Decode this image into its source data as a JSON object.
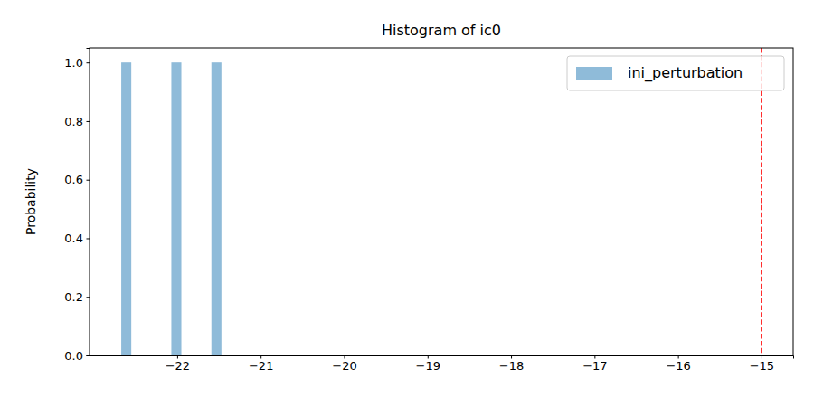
{
  "chart_data": {
    "type": "histogram",
    "title": "Histogram of ic0",
    "y_label": "Probability",
    "bins": [
      -22.67,
      -22.55,
      -22.43,
      -22.31,
      -22.19,
      -22.07,
      -21.95,
      -21.83,
      -21.71,
      -21.59,
      -21.47
    ],
    "series": [
      {
        "name": "ini_perturbation",
        "color": "#1f77b4",
        "values": [
          1,
          0,
          0,
          0,
          0,
          1,
          0,
          0,
          0,
          1
        ]
      }
    ],
    "xlim": [
      -23.05,
      -14.62
    ],
    "xticks": [
      {
        "value": -22,
        "label": "−22"
      },
      {
        "value": -21,
        "label": "−21"
      },
      {
        "value": -20,
        "label": "−20"
      },
      {
        "value": -19,
        "label": "−19"
      },
      {
        "value": -18,
        "label": "−18"
      },
      {
        "value": -17,
        "label": "−17"
      },
      {
        "value": -16,
        "label": "−16"
      },
      {
        "value": -15,
        "label": "−15"
      }
    ],
    "ylim": [
      0,
      1.05
    ],
    "yticks": [
      {
        "value": 0,
        "label": "0.0"
      },
      0.2,
      0.4,
      0.6,
      0.8,
      {
        "value": 1,
        "label": "1.0"
      }
    ],
    "vlines": [
      {
        "x": -15,
        "color": "#ff0000",
        "line_style": "dashed"
      }
    ],
    "legend": "upper right"
  }
}
